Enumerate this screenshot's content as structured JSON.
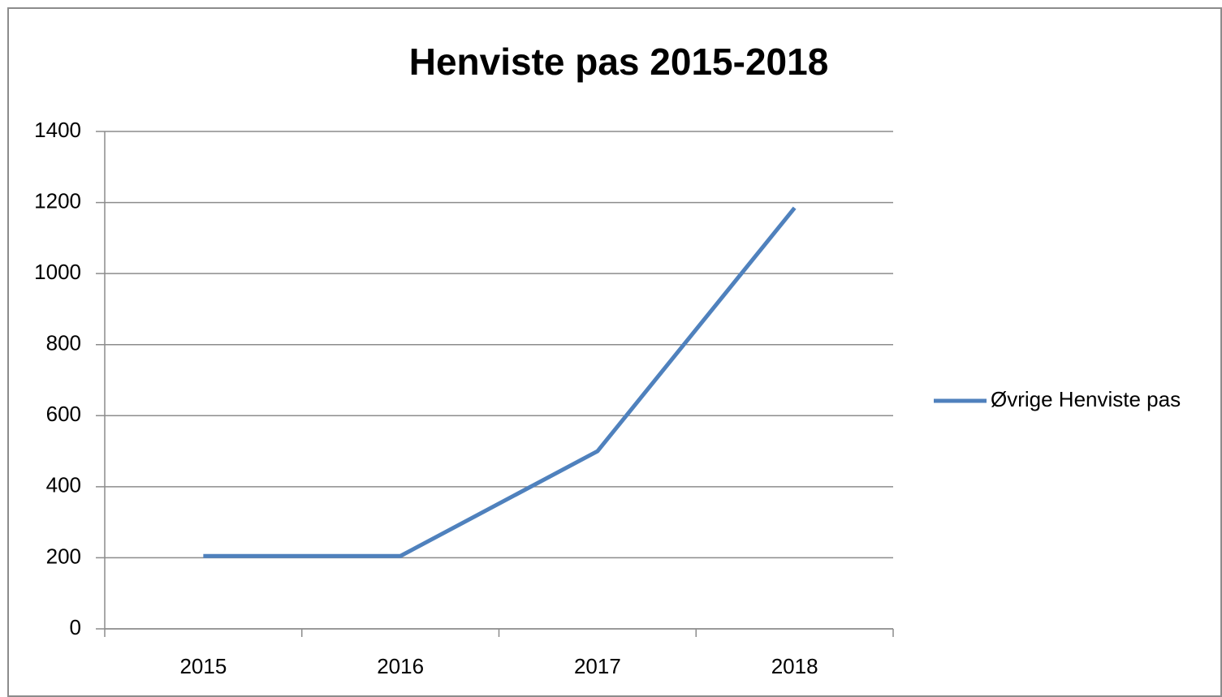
{
  "chart_data": {
    "type": "line",
    "title": "Henviste pas 2015-2018",
    "categories": [
      "2015",
      "2016",
      "2017",
      "2018"
    ],
    "series": [
      {
        "name": "Øvrige Henviste pas",
        "color": "#4f81bd",
        "values": [
          205,
          205,
          500,
          1185
        ]
      }
    ],
    "ylim": [
      0,
      1400
    ],
    "yticks": [
      0,
      200,
      400,
      600,
      800,
      1000,
      1200,
      1400
    ],
    "grid": true,
    "legend": "right"
  }
}
